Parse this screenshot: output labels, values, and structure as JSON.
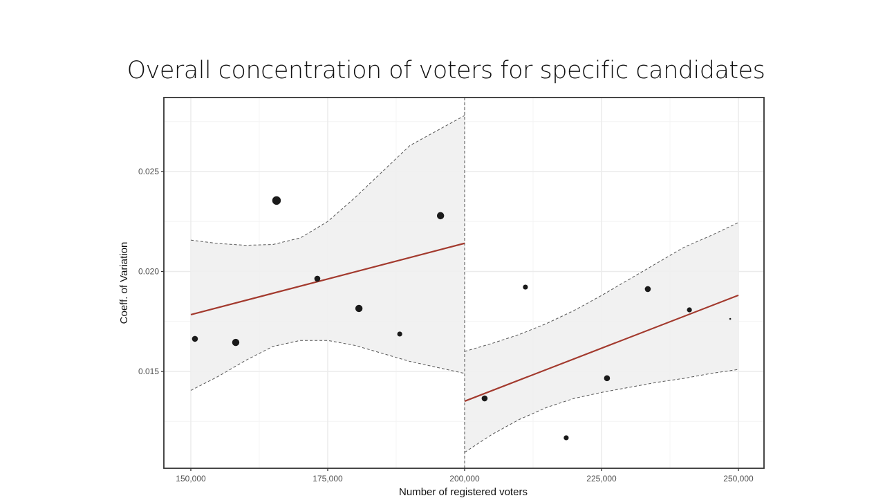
{
  "slide": {
    "title": "Overall concentration of voters for specific candidates"
  },
  "chart_data": {
    "type": "scatter",
    "title": "Overall concentration of voters for specific candidates",
    "xlabel": "Number of registered voters",
    "ylabel": "Coeff. of Variation",
    "xlim": [
      145000,
      254500
    ],
    "ylim": [
      0.0103,
      0.0283
    ],
    "x_ticks": [
      150000,
      175000,
      200000,
      225000,
      250000
    ],
    "x_tick_labels": [
      "150,000",
      "175,000",
      "200,000",
      "225,000",
      "250,000"
    ],
    "y_ticks": [
      0.015,
      0.02,
      0.025
    ],
    "y_tick_labels": [
      "0.015",
      "0.020",
      "0.025"
    ],
    "grid": true,
    "cutoff": 200000,
    "colors": {
      "points": "#1a1a1a",
      "fit_line": "#a33a2e",
      "ribbon": "#efefef",
      "ci_line": "#555555",
      "grid": "#ebebeb",
      "frame": "#333333"
    },
    "series": [
      {
        "name": "observations",
        "x": [
          150750,
          158200,
          165650,
          173100,
          180700,
          188150,
          195600,
          203650,
          211100,
          218550,
          226000,
          233450,
          241050,
          248500
        ],
        "y": [
          0.01663,
          0.01645,
          0.02355,
          0.01964,
          0.01815,
          0.01687,
          0.02279,
          0.01365,
          0.01922,
          0.01168,
          0.01466,
          0.01912,
          0.01808,
          0.01763
        ],
        "size": [
          2,
          3,
          4,
          2,
          3,
          1,
          3,
          2,
          1,
          1,
          2,
          2,
          1,
          0
        ]
      }
    ],
    "fits": [
      {
        "name": "fit-below-cutoff",
        "x": [
          150000,
          200000
        ],
        "y": [
          0.01784,
          0.02141
        ],
        "ci_x": [
          150000,
          155000,
          160000,
          165000,
          170000,
          175000,
          180000,
          185000,
          190000,
          195000,
          200000
        ],
        "ci_upper": [
          0.02157,
          0.0214,
          0.02131,
          0.02135,
          0.02168,
          0.0225,
          0.0237,
          0.025,
          0.0263,
          0.02705,
          0.0278
        ],
        "ci_lower": [
          0.01405,
          0.01475,
          0.01555,
          0.01625,
          0.01655,
          0.01655,
          0.0163,
          0.0159,
          0.0155,
          0.0152,
          0.0149
        ]
      },
      {
        "name": "fit-above-cutoff",
        "x": [
          200000,
          250000
        ],
        "y": [
          0.01351,
          0.01881
        ],
        "ci_x": [
          200000,
          205000,
          210000,
          215000,
          220000,
          225000,
          230000,
          235000,
          240000,
          245000,
          250000
        ],
        "ci_upper": [
          0.016,
          0.0164,
          0.01685,
          0.0174,
          0.01805,
          0.0188,
          0.0196,
          0.0204,
          0.0212,
          0.0218,
          0.02245
        ],
        "ci_lower": [
          0.01095,
          0.01185,
          0.0126,
          0.0132,
          0.01365,
          0.01395,
          0.0142,
          0.01445,
          0.01465,
          0.0149,
          0.0151
        ]
      }
    ]
  }
}
